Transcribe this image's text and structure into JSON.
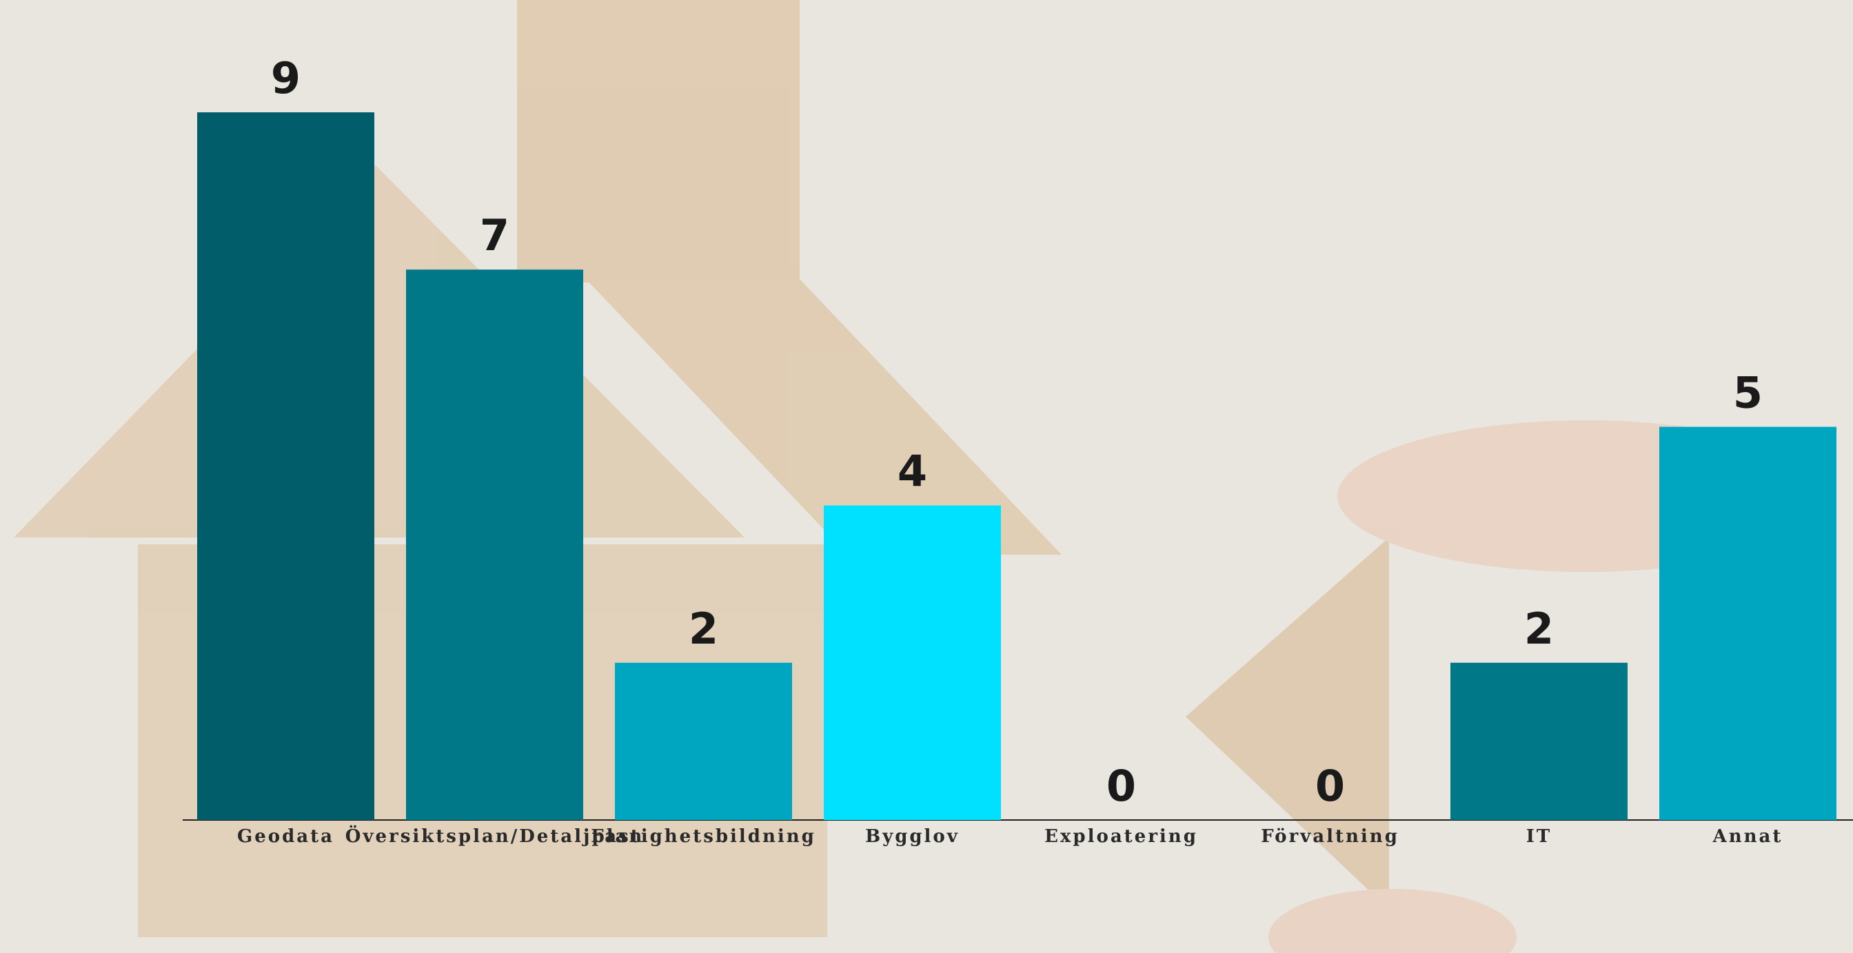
{
  "chart_data": {
    "type": "bar",
    "categories": [
      "Geodata",
      "Översiktsplan/Detaljplan",
      "Fastighetsbildning",
      "Bygglov",
      "Exploatering",
      "Förvaltning",
      "IT",
      "Annat"
    ],
    "values": [
      9,
      7,
      2,
      4,
      0,
      0,
      2,
      5
    ],
    "colors": [
      "#005d69",
      "#007887",
      "#00a6c0",
      "#00e0ff",
      "#00a6c0",
      "#00a6c0",
      "#007887",
      "#00a6c0"
    ]
  }
}
